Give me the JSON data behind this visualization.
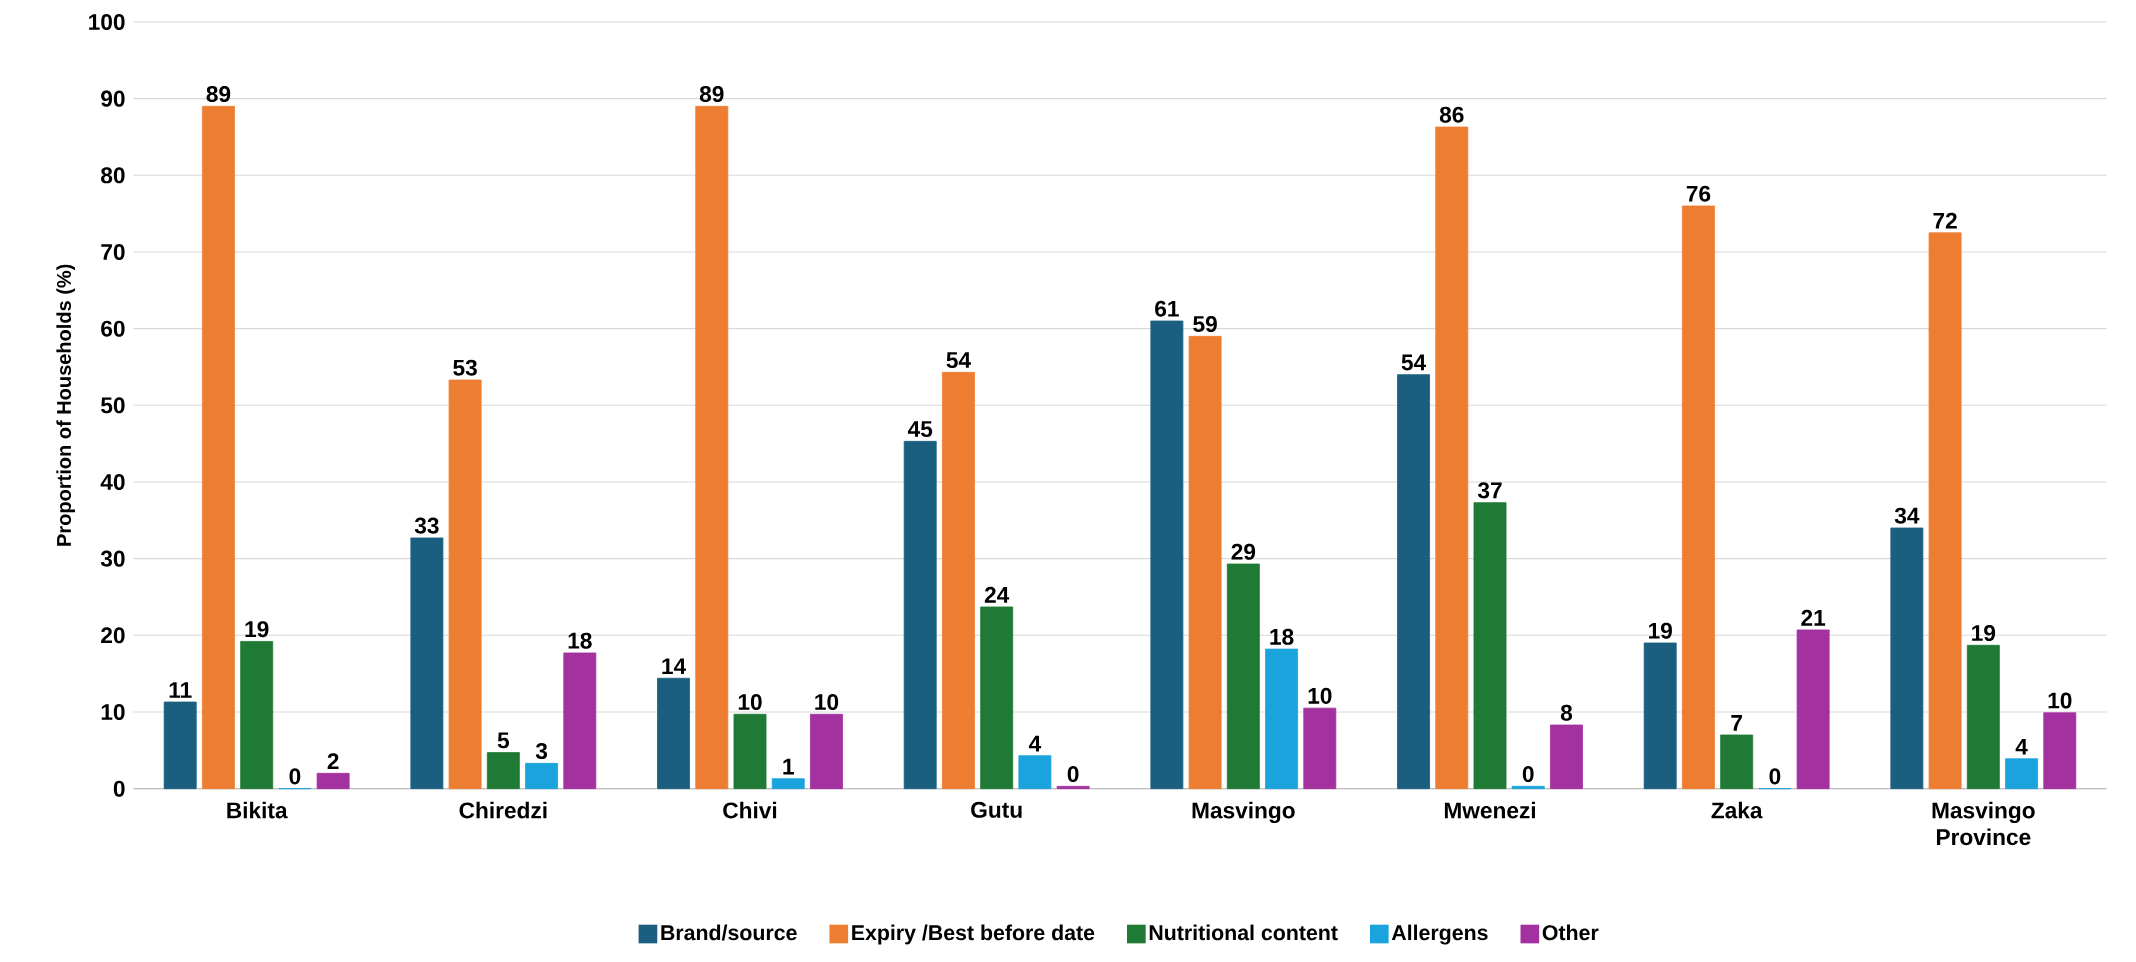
{
  "chart_data": {
    "type": "bar",
    "ylabel": "Proportion of Households (%)",
    "categories": [
      "Bikita",
      "Chiredzi",
      "Chivi",
      "Gutu",
      "Masvingo",
      "Mwenezi",
      "Zaka",
      "Masvingo Province"
    ],
    "series": [
      {
        "name": "Brand/source",
        "color": "#1a5f80",
        "values": [
          11.3,
          32.7,
          14.4,
          45.3,
          61,
          54,
          19,
          34
        ],
        "value_labels": [
          "11",
          "33",
          "14",
          "45",
          "61",
          "54",
          "19",
          "34"
        ]
      },
      {
        "name": "Expiry /Best before date",
        "color": "#ed7d31",
        "values": [
          89,
          53.3,
          89,
          54.3,
          59,
          86.3,
          76,
          72.5
        ],
        "value_labels": [
          "89",
          "53",
          "89",
          "54",
          "59",
          "86",
          "76",
          "72"
        ]
      },
      {
        "name": "Nutritional content",
        "color": "#1e7a34",
        "values": [
          19.2,
          4.7,
          9.7,
          23.7,
          29.3,
          37.3,
          7,
          18.7
        ],
        "value_labels": [
          "19",
          "5",
          "10",
          "24",
          "29",
          "37",
          "7",
          "19"
        ]
      },
      {
        "name": "Allergens",
        "color": "#1aa3dc",
        "values": [
          0,
          3.3,
          1.3,
          4.3,
          18.2,
          0.3,
          0,
          3.9
        ],
        "value_labels": [
          "0",
          "3",
          "1",
          "4",
          "18",
          "0",
          "0",
          "4"
        ]
      },
      {
        "name": "Other",
        "color": "#a3319f",
        "values": [
          2,
          17.7,
          9.7,
          0.3,
          10.5,
          8.3,
          20.7,
          9.9
        ],
        "value_labels": [
          "2",
          "18",
          "10",
          "0",
          "10",
          "8",
          "21",
          "10"
        ]
      }
    ],
    "ylim": [
      0,
      100
    ],
    "yticks": [
      0,
      10,
      20,
      30,
      40,
      50,
      60,
      70,
      80,
      90,
      100
    ],
    "grid": "y",
    "legend": "bottom"
  }
}
